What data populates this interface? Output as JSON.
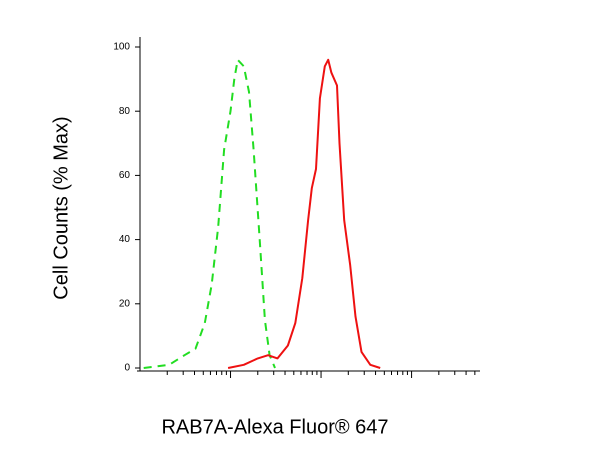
{
  "chart_data": {
    "type": "line",
    "x_label": "RAB7A-Alexa Fluor® 647",
    "y_label": "Cell Counts (% Max)",
    "xlog": true,
    "xlim": [
      1,
      5700
    ],
    "xticks": [
      10,
      100,
      1000
    ],
    "ylim": [
      0,
      100
    ],
    "yticks": [
      0,
      20,
      40,
      60,
      80,
      100
    ],
    "series": [
      {
        "color": "#22dd22",
        "dashed": true,
        "x": [
          1.1,
          2.1,
          3.1,
          4.1,
          5.2,
          6.2,
          7.3,
          8.5,
          10,
          11,
          12,
          14,
          16,
          18,
          21,
          24,
          27,
          31
        ],
        "values": [
          0,
          1,
          4,
          6,
          14,
          26,
          44,
          68,
          80,
          90,
          96,
          94,
          86,
          68,
          40,
          15,
          4,
          0
        ]
      },
      {
        "color": "#ee1111",
        "dashed": false,
        "x": [
          9.4,
          14,
          20,
          26,
          33,
          43,
          52,
          62,
          72,
          79,
          88,
          97,
          110,
          120,
          130,
          150,
          160,
          180,
          210,
          240,
          280,
          350,
          450
        ],
        "values": [
          0,
          1,
          3,
          4,
          3,
          7,
          14,
          28,
          46,
          56,
          62,
          84,
          94,
          96,
          92,
          88,
          70,
          46,
          32,
          16,
          5,
          1,
          0
        ]
      }
    ]
  }
}
